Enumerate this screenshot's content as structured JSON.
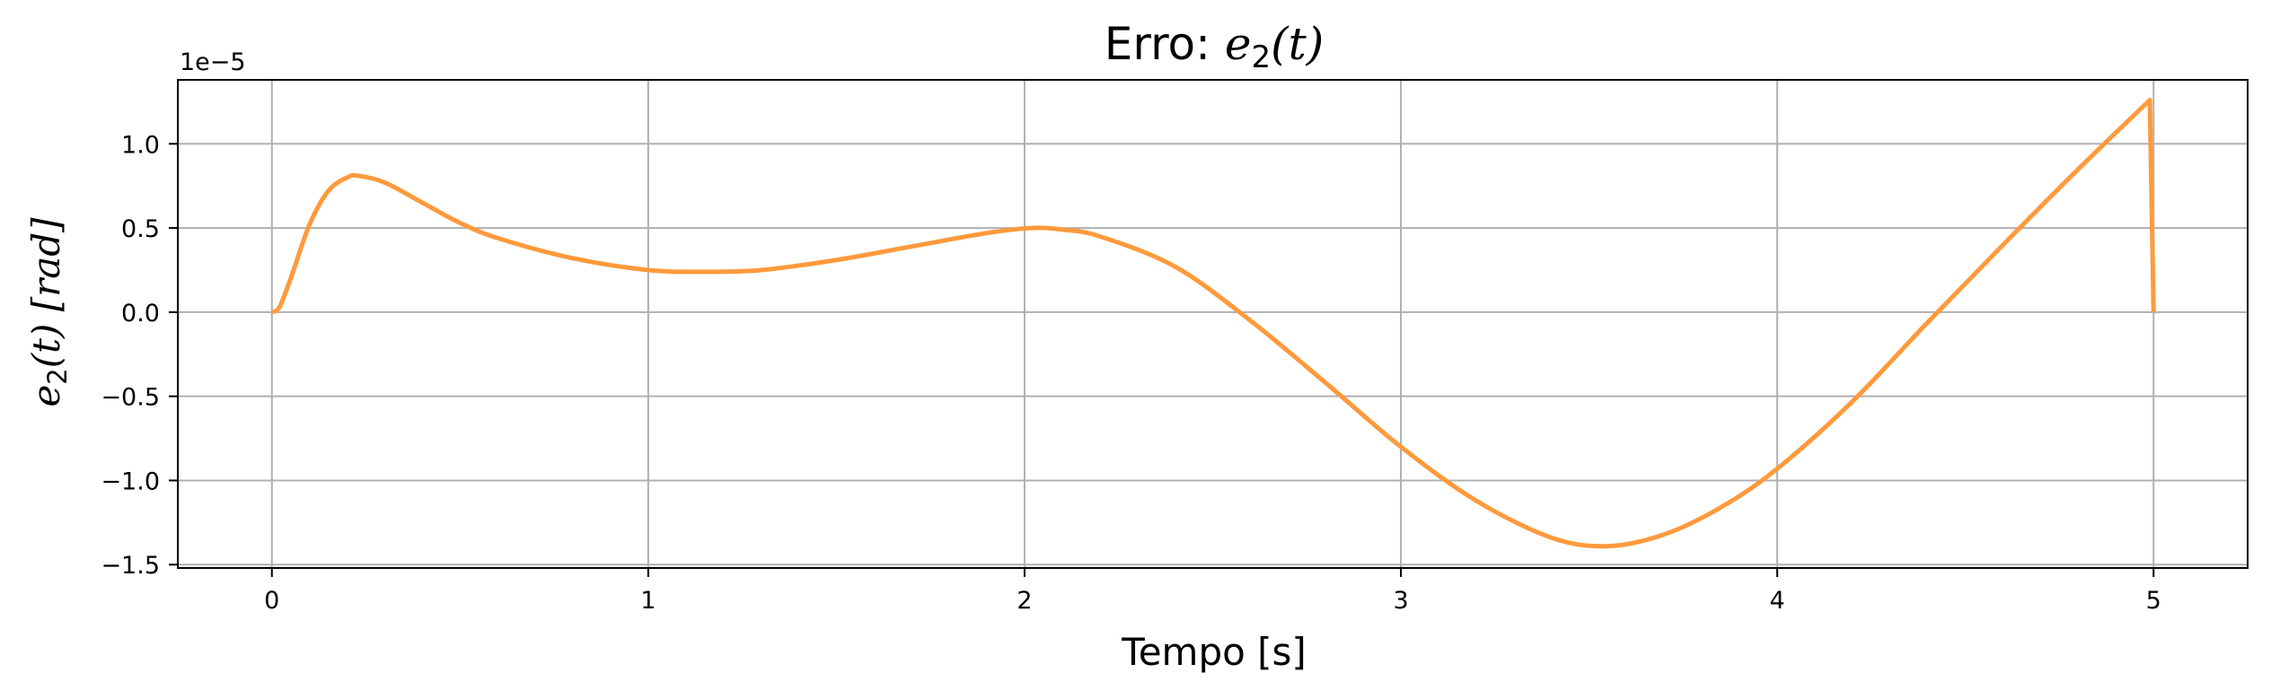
{
  "chart_data": {
    "type": "line",
    "title": {
      "prefix": "Erro: ",
      "var": "e",
      "sub": "2",
      "arg": "(t)"
    },
    "xlabel": "Tempo [s]",
    "ylabel": {
      "var": "e",
      "sub": "2",
      "arg": "(t)",
      "unit": " [rad]"
    },
    "y_offset_label": "1e−5",
    "xlim": [
      -0.25,
      5.25
    ],
    "ylim": [
      -1.52,
      1.38
    ],
    "grid": true,
    "x_ticks": [
      {
        "value": 0,
        "label": "0"
      },
      {
        "value": 1,
        "label": "1"
      },
      {
        "value": 2,
        "label": "2"
      },
      {
        "value": 3,
        "label": "3"
      },
      {
        "value": 4,
        "label": "4"
      },
      {
        "value": 5,
        "label": "5"
      }
    ],
    "y_ticks": [
      {
        "value": 1.0,
        "label": "1.0"
      },
      {
        "value": 0.5,
        "label": "0.5"
      },
      {
        "value": 0.0,
        "label": "0.0"
      },
      {
        "value": -0.5,
        "label": "−0.5"
      },
      {
        "value": -1.0,
        "label": "−1.0"
      },
      {
        "value": -1.5,
        "label": "−1.5"
      }
    ],
    "series": [
      {
        "color": "#ff9a3c",
        "x": [
          0.0,
          0.02,
          0.05,
          0.1,
          0.15,
          0.2,
          0.23,
          0.3,
          0.4,
          0.5,
          0.6,
          0.8,
          1.0,
          1.15,
          1.3,
          1.5,
          1.7,
          1.9,
          2.02,
          2.1,
          2.2,
          2.4,
          2.6,
          2.8,
          3.0,
          3.2,
          3.4,
          3.55,
          3.7,
          3.85,
          4.0,
          4.2,
          4.4,
          4.6,
          4.8,
          4.99,
          5.0
        ],
        "y": [
          0.0,
          0.03,
          0.2,
          0.52,
          0.72,
          0.8,
          0.81,
          0.77,
          0.65,
          0.53,
          0.44,
          0.32,
          0.25,
          0.24,
          0.25,
          0.31,
          0.39,
          0.47,
          0.5,
          0.49,
          0.45,
          0.27,
          -0.05,
          -0.42,
          -0.8,
          -1.12,
          -1.34,
          -1.39,
          -1.32,
          -1.16,
          -0.93,
          -0.53,
          -0.06,
          0.4,
          0.85,
          1.26,
          0.0
        ]
      }
    ]
  }
}
